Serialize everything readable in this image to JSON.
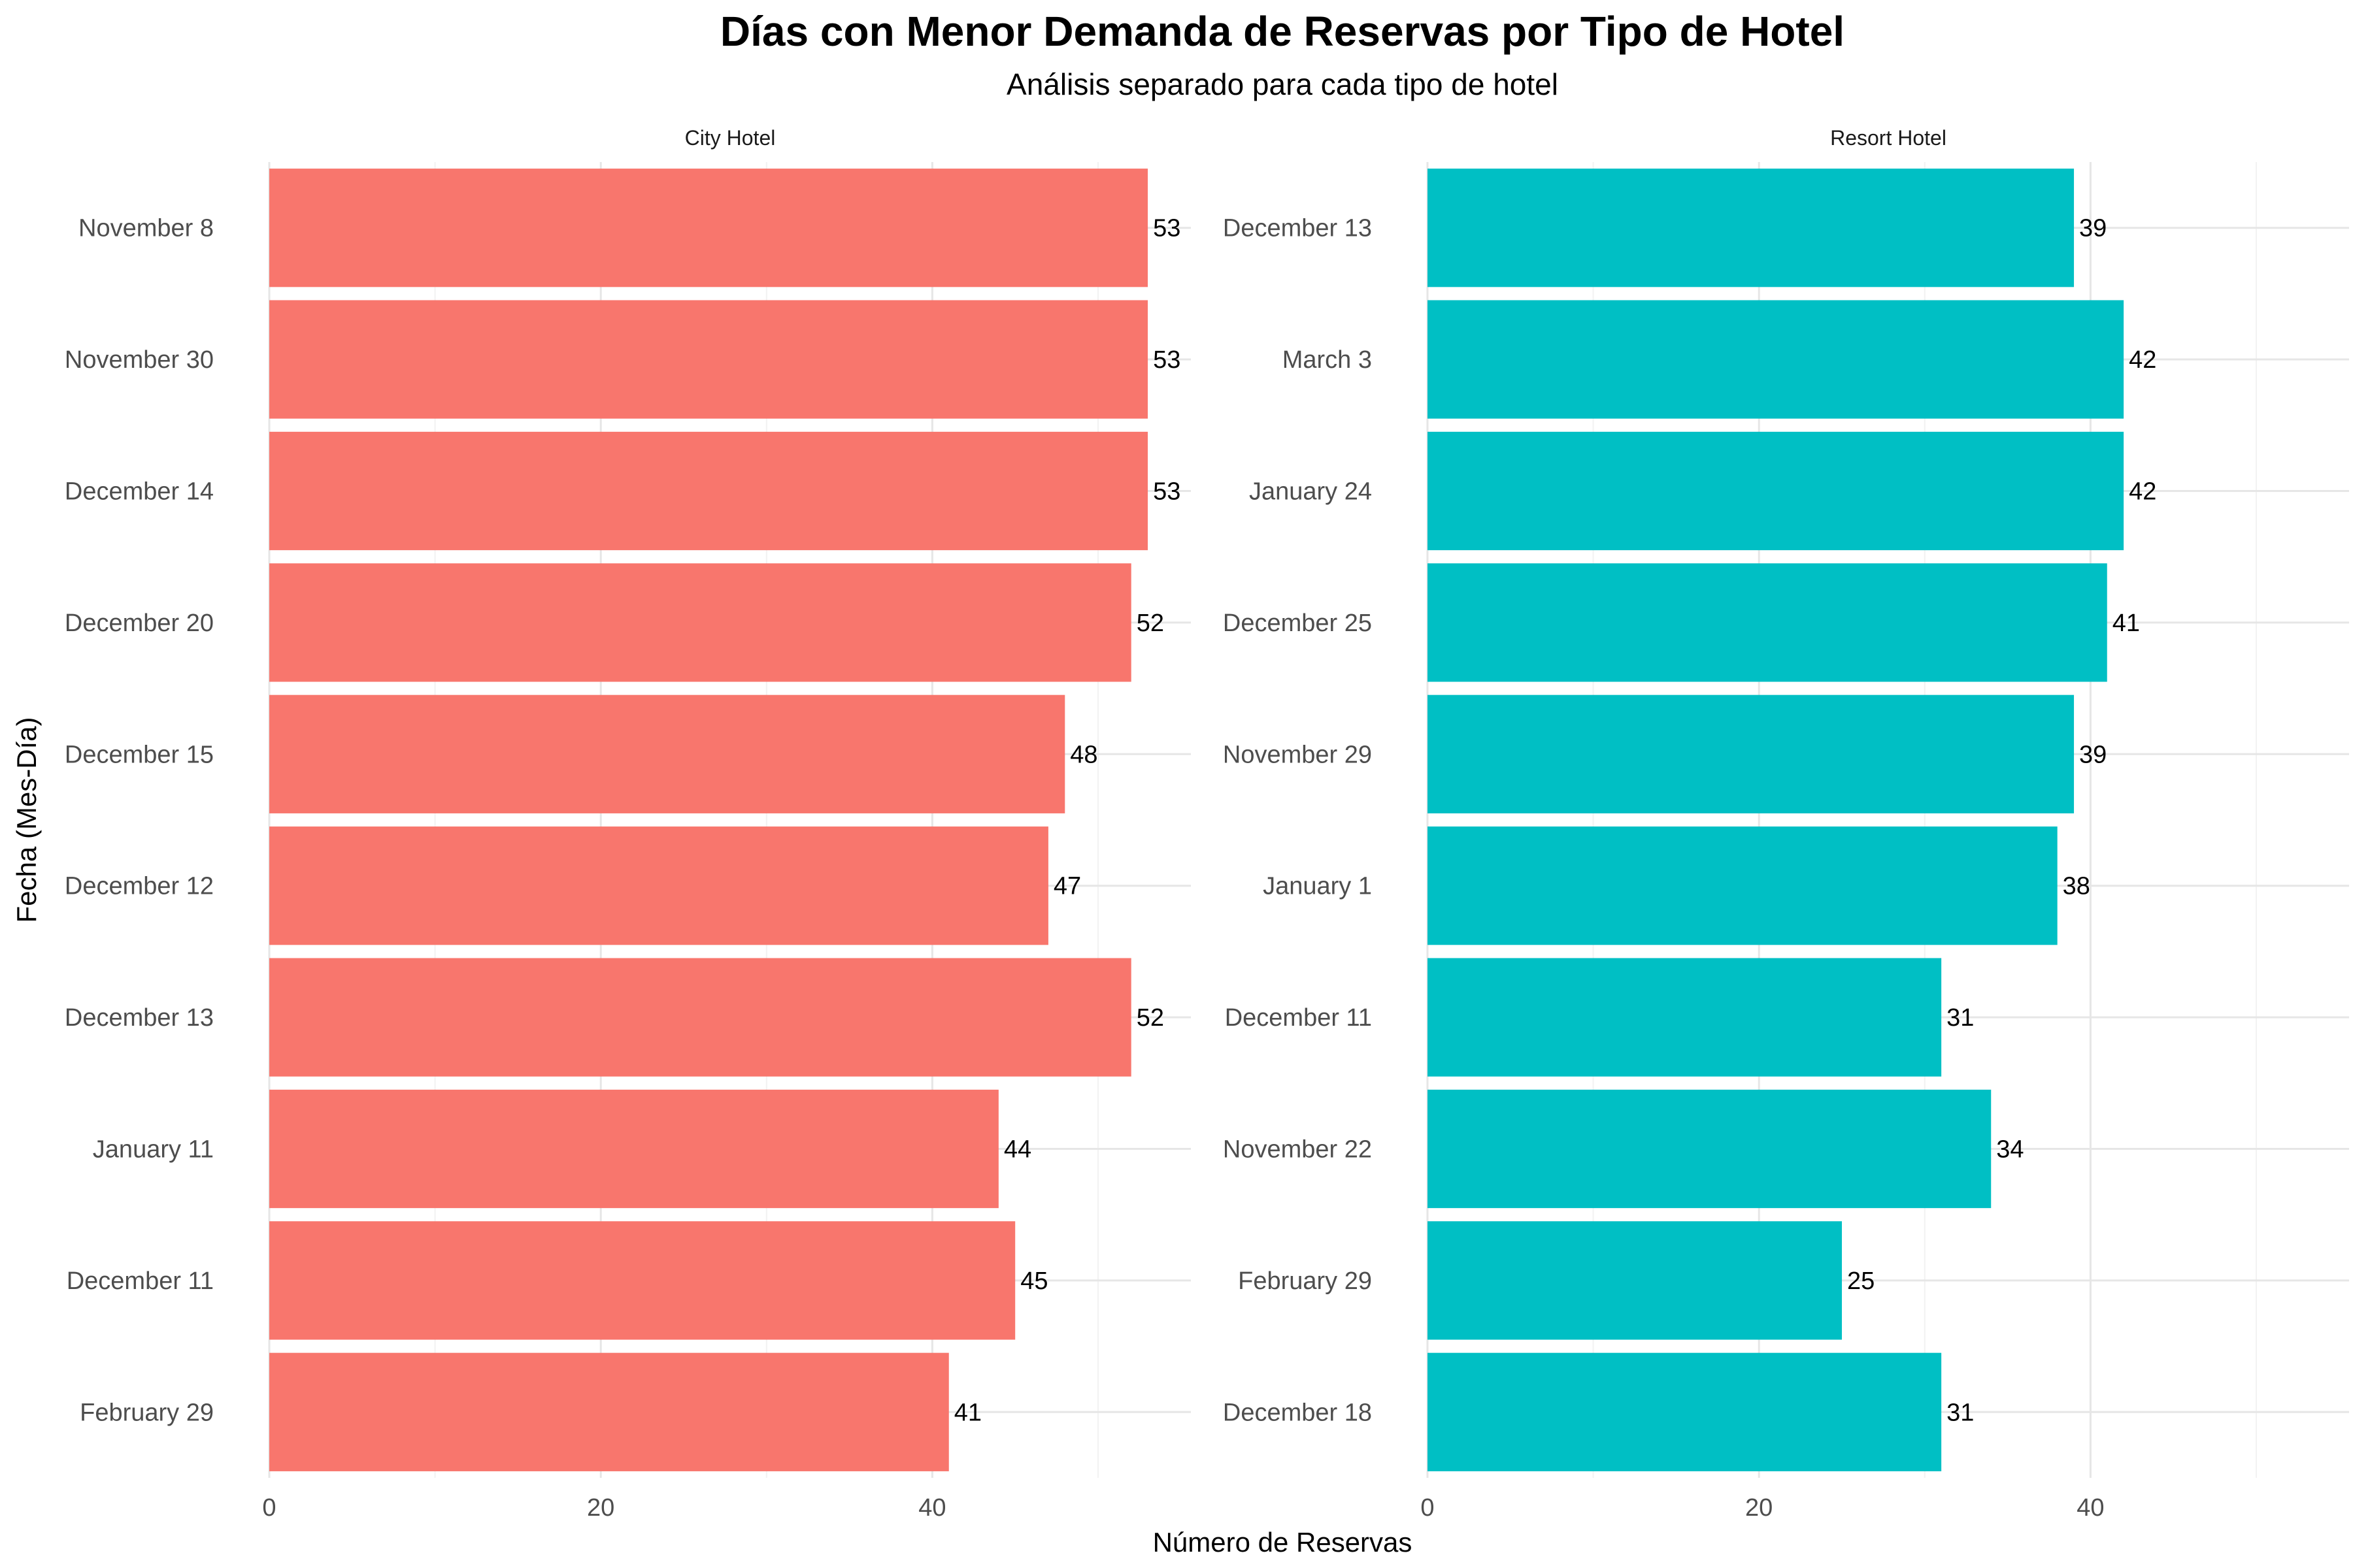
{
  "chart_data": {
    "type": "bar",
    "orientation": "horizontal",
    "title": "Días con Menor Demanda de Reservas por Tipo de Hotel",
    "subtitle": "Análisis separado para cada tipo de hotel",
    "xlabel": "Número de Reservas",
    "ylabel": "Fecha (Mes-Día)",
    "xlim": [
      0,
      55
    ],
    "x_ticks": [
      0,
      20,
      40
    ],
    "grid": true,
    "colors": {
      "City Hotel": "#F8766D",
      "Resort Hotel": "#00BFC4"
    },
    "facets": [
      {
        "name": "City Hotel",
        "categories": [
          "November 8",
          "November 30",
          "December 14",
          "December 20",
          "December 15",
          "December 12",
          "December 13",
          "January 11",
          "December 11",
          "February 29"
        ],
        "values": [
          53,
          53,
          53,
          52,
          48,
          47,
          52,
          44,
          45,
          41
        ]
      },
      {
        "name": "Resort Hotel",
        "categories": [
          "December 13",
          "March 3",
          "January 24",
          "December 25",
          "November 29",
          "January 1",
          "December 11",
          "November 22",
          "February 29",
          "December 18"
        ],
        "values": [
          39,
          42,
          42,
          41,
          39,
          38,
          31,
          34,
          25,
          31
        ]
      }
    ]
  }
}
